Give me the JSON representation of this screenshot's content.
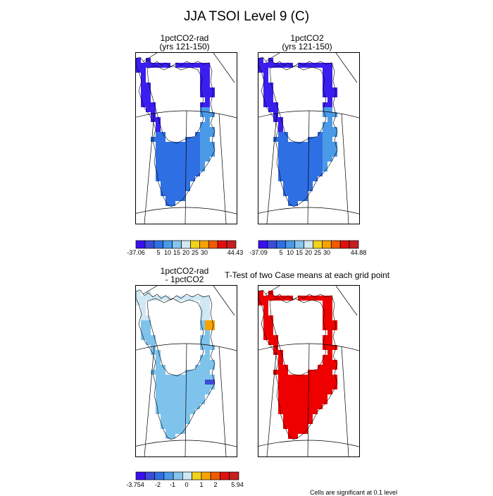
{
  "figure": {
    "title": "JJA TSOI Level 9 (C)"
  },
  "panels": {
    "p1": {
      "title_line1": "1pctCO2-rad",
      "title_line2": "(yrs 121-150)"
    },
    "p2": {
      "title_line1": "1pctCO2",
      "title_line2": "(yrs 121-150)"
    },
    "p3": {
      "title_line1": "1pctCO2-rad",
      "title_line2": "- 1pctCO2"
    },
    "p4": {
      "title": "T-Test of two Case means at each grid point"
    }
  },
  "colorbars": {
    "abs1": {
      "min_label": "-37.06",
      "max_label": "44.43",
      "tick_labels": [
        "5",
        "10",
        "15",
        "20",
        "25",
        "30"
      ],
      "colors": [
        "#3a0ff0",
        "#3c4bd8",
        "#2f6fe4",
        "#4b9ae8",
        "#85c4ec",
        "#cfe8f4",
        "#f2d21a",
        "#f6a200",
        "#f05a00",
        "#e01010",
        "#c42020"
      ]
    },
    "abs2": {
      "min_label": "-37.09",
      "max_label": "44.88",
      "tick_labels": [
        "5",
        "10",
        "15",
        "20",
        "25",
        "30"
      ],
      "colors": [
        "#3a0ff0",
        "#3c4bd8",
        "#2f6fe4",
        "#4b9ae8",
        "#85c4ec",
        "#cfe8f4",
        "#f2d21a",
        "#f6a200",
        "#f05a00",
        "#e01010",
        "#c42020"
      ]
    },
    "diff": {
      "min_label": "-3.754",
      "max_label": "5.94",
      "tick_labels": [
        "-2",
        "-1",
        "0",
        "1",
        "2"
      ],
      "colors": [
        "#3a0ff0",
        "#3c4bd8",
        "#2f6fe4",
        "#4b9ae8",
        "#85c4ec",
        "#cfe8f4",
        "#f2d21a",
        "#f6a200",
        "#f05a00",
        "#e01010",
        "#c42020"
      ]
    }
  },
  "map_colors": {
    "p1_main": "#3a1ef0",
    "p1_south": "#2f6fe4",
    "p1_east": "#4b9ae8",
    "p2_main": "#3a1ef0",
    "p2_south": "#2f6fe4",
    "p2_east": "#4b9ae8",
    "p3_main": "#7ec3ec",
    "p3_pale": "#cfe8f4",
    "p3_hot": "#f6a200",
    "p3_cold": "#3c4bd8",
    "p4_sig": "#ee0000"
  },
  "footnote": "Cells are significant at 0.1 level"
}
